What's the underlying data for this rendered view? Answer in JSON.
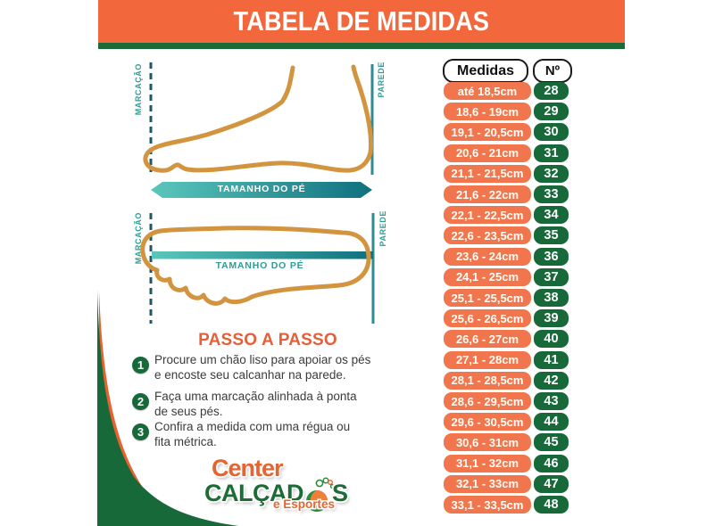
{
  "title": "TABELA DE MEDIDAS",
  "colors": {
    "banner_orange": "#F2683C",
    "dark_green": "#17693A",
    "table_orange": "#F1764E",
    "teal": "#2E9C96",
    "foot_outline_gold": "#D2943E",
    "step_title_orange": "#E55F38",
    "logo_orange": "#E8632F",
    "logo_green": "#1D6B35"
  },
  "diagram_side": {
    "left_label": "MARCAÇÃO",
    "right_label": "PAREDE",
    "arrow_label": "TAMANHO DO PÉ"
  },
  "diagram_top": {
    "left_label": "MARCAÇÃO",
    "right_label": "PAREDE",
    "bar_label": "TAMANHO DO PÉ"
  },
  "steps": {
    "title": "PASSO A PASSO",
    "items": [
      {
        "number": "1",
        "lines": [
          "Procure um chão liso para apoiar os pés",
          "e encoste seu calcanhar na parede."
        ]
      },
      {
        "number": "2",
        "lines": [
          "Faça uma marcação alinhada à ponta",
          "de seus pés."
        ]
      },
      {
        "number": "3",
        "lines": [
          "Confira a medida com uma régua ou",
          "fita métrica."
        ]
      }
    ]
  },
  "logo": {
    "line1": "Center",
    "line2_prefix": "CALÇAD",
    "line2_suffix": "S",
    "line3": "e Esportes",
    "icon": "footprint-ball-icon"
  },
  "table": {
    "headers": {
      "medidas": "Medidas",
      "numero": "Nº"
    },
    "rows": [
      {
        "medida": "até 18,5cm",
        "numero": "28"
      },
      {
        "medida": "18,6 - 19cm",
        "numero": "29"
      },
      {
        "medida": "19,1 - 20,5cm",
        "numero": "30"
      },
      {
        "medida": "20,6 - 21cm",
        "numero": "31"
      },
      {
        "medida": "21,1 - 21,5cm",
        "numero": "32"
      },
      {
        "medida": "21,6 - 22cm",
        "numero": "33"
      },
      {
        "medida": "22,1 - 22,5cm",
        "numero": "34"
      },
      {
        "medida": "22,6 - 23,5cm",
        "numero": "35"
      },
      {
        "medida": "23,6 - 24cm",
        "numero": "36"
      },
      {
        "medida": "24,1 - 25cm",
        "numero": "37"
      },
      {
        "medida": "25,1 - 25,5cm",
        "numero": "38"
      },
      {
        "medida": "25,6 - 26,5cm",
        "numero": "39"
      },
      {
        "medida": "26,6 - 27cm",
        "numero": "40"
      },
      {
        "medida": "27,1 - 28cm",
        "numero": "41"
      },
      {
        "medida": "28,1 - 28,5cm",
        "numero": "42"
      },
      {
        "medida": "28,6 - 29,5cm",
        "numero": "43"
      },
      {
        "medida": "29,6 - 30,5cm",
        "numero": "44"
      },
      {
        "medida": "30,6 - 31cm",
        "numero": "45"
      },
      {
        "medida": "31,1 - 32cm",
        "numero": "46"
      },
      {
        "medida": "32,1 - 33cm",
        "numero": "47"
      },
      {
        "medida": "33,1 - 33,5cm",
        "numero": "48"
      }
    ]
  }
}
